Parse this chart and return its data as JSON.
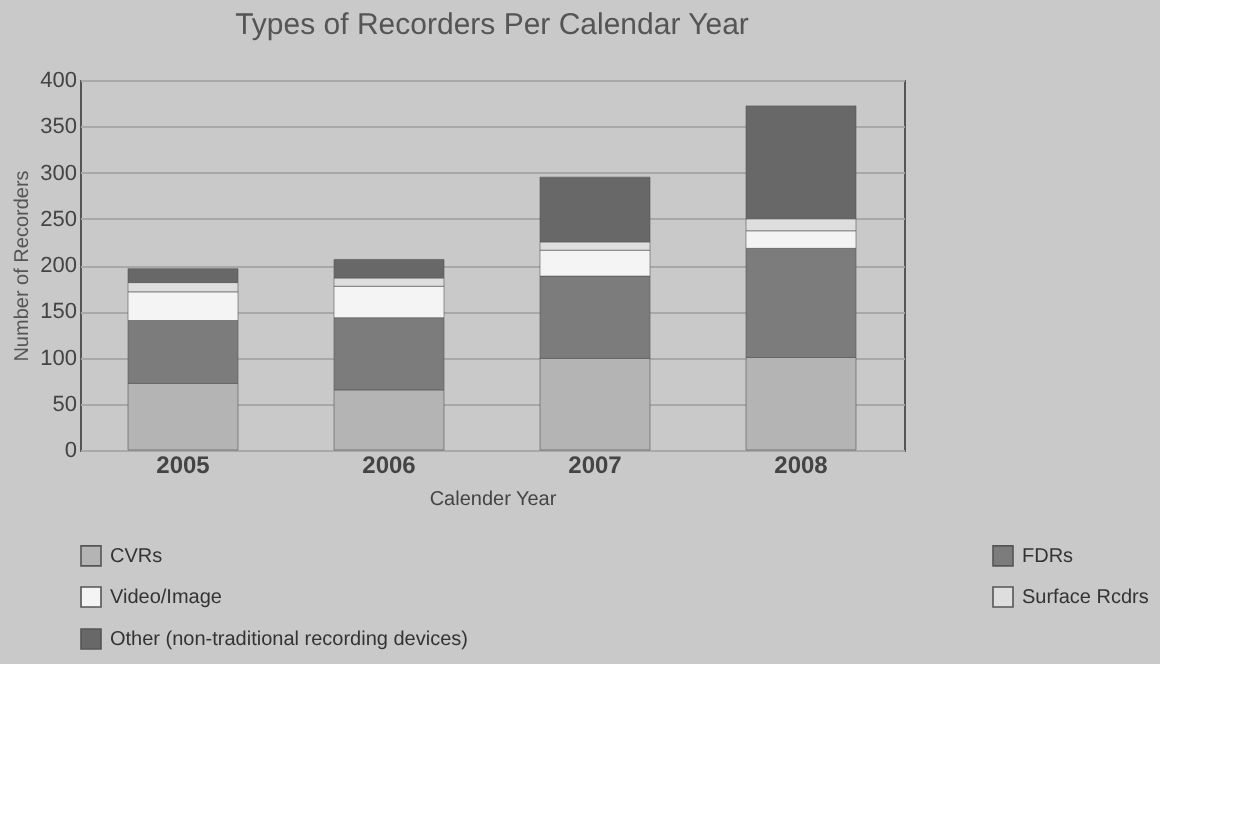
{
  "chart_data": {
    "type": "bar",
    "title": "Types of Recorders Per Calendar Year",
    "xlabel": "Calender Year",
    "ylabel": "Number of Recorders",
    "categories": [
      "2005",
      "2006",
      "2007",
      "2008"
    ],
    "series": [
      {
        "name": "CVRs",
        "color": "#b4b4b4",
        "values": [
          72,
          65,
          99,
          100
        ]
      },
      {
        "name": "FDRs",
        "color": "#7c7c7c",
        "values": [
          68,
          78,
          89,
          118
        ]
      },
      {
        "name": "Video/Image",
        "color": "#f4f4f4",
        "values": [
          31,
          34,
          28,
          19
        ]
      },
      {
        "name": "Surface Rcdrs",
        "color": "#dedede",
        "values": [
          10,
          9,
          9,
          13
        ]
      },
      {
        "name": "Other (non-traditional recording devices)",
        "color": "#686868",
        "values": [
          15,
          20,
          70,
          122
        ]
      }
    ],
    "stacked": true,
    "ylim": [
      0,
      400
    ],
    "yticks": [
      0,
      50,
      100,
      150,
      200,
      250,
      300,
      350,
      400
    ],
    "grid": "y",
    "legend": "bottom"
  }
}
